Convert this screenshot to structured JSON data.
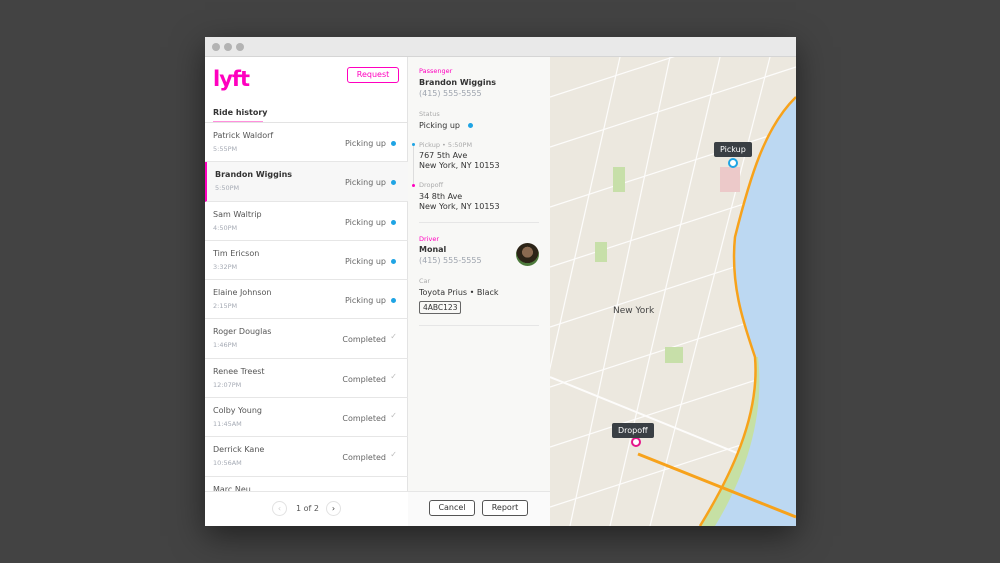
{
  "window": {
    "controls": [
      "close",
      "minimize",
      "maximize"
    ]
  },
  "header": {
    "logo": "lyft",
    "request_label": "Request"
  },
  "ride_history": {
    "title": "Ride history",
    "rides": [
      {
        "name": "Patrick Waldorf",
        "time": "5:55PM",
        "status": "Picking up",
        "selected": false
      },
      {
        "name": "Brandon Wiggins",
        "time": "5:50PM",
        "status": "Picking up",
        "selected": true
      },
      {
        "name": "Sam Waltrip",
        "time": "4:50PM",
        "status": "Picking up",
        "selected": false
      },
      {
        "name": "Tim Ericson",
        "time": "3:32PM",
        "status": "Picking up",
        "selected": false
      },
      {
        "name": "Elaine Johnson",
        "time": "2:15PM",
        "status": "Picking up",
        "selected": false
      },
      {
        "name": "Roger Douglas",
        "time": "1:46PM",
        "status": "Completed",
        "selected": false
      },
      {
        "name": "Renee Treest",
        "time": "12:07PM",
        "status": "Completed",
        "selected": false
      },
      {
        "name": "Colby Young",
        "time": "11:45AM",
        "status": "Completed",
        "selected": false
      },
      {
        "name": "Derrick Kane",
        "time": "10:56AM",
        "status": "Completed",
        "selected": false
      },
      {
        "name": "Marc Neu",
        "time": "",
        "status": "",
        "selected": false
      }
    ]
  },
  "pagination": {
    "label": "1 of 2",
    "prev": "‹",
    "next": "›"
  },
  "details": {
    "passenger_label": "Passenger",
    "passenger_name": "Brandon Wiggins",
    "passenger_phone": "(415) 555-5555",
    "status_label": "Status",
    "status_value": "Picking up",
    "pickup_label": "Pickup • 5:50PM",
    "pickup_line1": "767 5th Ave",
    "pickup_line2": "New York, NY 10153",
    "dropoff_label": "Dropoff",
    "dropoff_line1": "34 8th Ave",
    "dropoff_line2": "New York, NY 10153",
    "driver_label": "Driver",
    "driver_name": "Monal",
    "driver_phone": "(415) 555-5555",
    "car_label": "Car",
    "car_value": "Toyota Prius • Black",
    "plate": "4ABC123",
    "cancel_label": "Cancel",
    "report_label": "Report"
  },
  "map": {
    "city_label": "New York",
    "pickup_label": "Pickup",
    "dropoff_label": "Dropoff"
  },
  "colors": {
    "brand": "#ff00bf",
    "picking_up": "#1fa4e4",
    "highway": "#f7a21b",
    "water": "#bcd8f2"
  }
}
